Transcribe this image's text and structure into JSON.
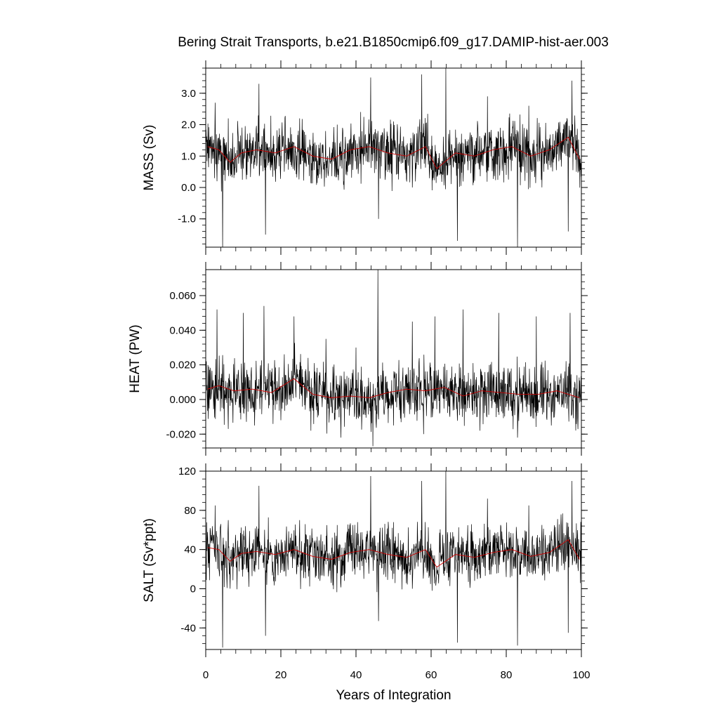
{
  "title": "Bering Strait Transports, b.e21.B1850cmip6.f09_g17.DAMIP-hist-aer.003",
  "chart_data": [
    {
      "type": "line",
      "ylabel": "MASS (Sv)",
      "xlabel": "",
      "xlim": [
        0,
        100
      ],
      "ylim": [
        -1.9,
        3.8
      ],
      "yticks": [
        -1.0,
        0.0,
        1.0,
        2.0,
        3.0
      ],
      "ytick_labels": [
        "-1.0",
        "0.0",
        "1.0",
        "2.0",
        "3.0"
      ],
      "xticks": [
        0,
        20,
        40,
        60,
        80,
        100
      ],
      "series": [
        {
          "color": "#000000",
          "kind": "monthly",
          "x": [
            0,
            2.5,
            4.5,
            6,
            10,
            14.2,
            15.9,
            20,
            25,
            30,
            35,
            40,
            43.9,
            46,
            50,
            55,
            57.5,
            60,
            63.9,
            67,
            70,
            75,
            80,
            83,
            86,
            90,
            96.5,
            97.5,
            100
          ],
          "y": [
            1.0,
            2.7,
            -1.9,
            2.2,
            0.6,
            3.3,
            -1.5,
            1.0,
            2.2,
            0.3,
            2.0,
            1.0,
            3.5,
            -1.0,
            2.1,
            0.0,
            3.6,
            1.0,
            3.8,
            -1.7,
            1.1,
            2.9,
            0.4,
            -1.9,
            2.6,
            0.5,
            -1.4,
            3.4,
            0.3
          ]
        },
        {
          "color": "#cc0000",
          "kind": "annual mean",
          "x": [
            0.5,
            3.5,
            6.5,
            9.5,
            13.5,
            18.5,
            23.5,
            28.5,
            33.5,
            38.5,
            43.5,
            48.5,
            53.5,
            58.5,
            61.5,
            66.5,
            71.5,
            76.5,
            81.5,
            86.5,
            91.5,
            96.5,
            99.5
          ],
          "y": [
            1.3,
            1.2,
            0.8,
            1.1,
            1.2,
            1.1,
            1.3,
            1.0,
            0.9,
            1.2,
            1.3,
            1.1,
            1.0,
            1.3,
            0.6,
            1.1,
            1.0,
            1.2,
            1.3,
            1.0,
            1.2,
            1.6,
            0.9
          ]
        }
      ]
    },
    {
      "type": "line",
      "ylabel": "HEAT (PW)",
      "xlabel": "",
      "xlim": [
        0,
        100
      ],
      "ylim": [
        -0.028,
        0.075
      ],
      "yticks": [
        -0.02,
        0.0,
        0.02,
        0.04,
        0.06
      ],
      "ytick_labels": [
        "-0.020",
        "0.000",
        "0.020",
        "0.040",
        "0.060"
      ],
      "xticks": [
        0,
        20,
        40,
        60,
        80,
        100
      ],
      "series": [
        {
          "color": "#000000",
          "kind": "monthly",
          "x": [
            0,
            3,
            6,
            10,
            13,
            15.5,
            20,
            23.5,
            28,
            32,
            36,
            40,
            44.5,
            45.8,
            50,
            55,
            58,
            61,
            65,
            68.5,
            73,
            78,
            83,
            88,
            92,
            97,
            100
          ],
          "y": [
            0.005,
            0.052,
            -0.017,
            0.05,
            -0.015,
            0.054,
            -0.012,
            0.048,
            -0.018,
            0.035,
            -0.022,
            0.03,
            -0.027,
            0.075,
            -0.015,
            0.045,
            -0.02,
            0.048,
            -0.01,
            0.052,
            -0.018,
            0.05,
            -0.022,
            0.048,
            -0.015,
            0.05,
            -0.01
          ]
        },
        {
          "color": "#cc0000",
          "kind": "annual mean",
          "x": [
            0.5,
            3.5,
            7.5,
            12.5,
            17.5,
            23.5,
            28.5,
            33.5,
            38.5,
            43.5,
            48.5,
            53.5,
            58.5,
            63.5,
            68.5,
            73.5,
            78.5,
            83.5,
            88.5,
            93.5,
            99.5
          ],
          "y": [
            0.006,
            0.008,
            0.005,
            0.006,
            0.004,
            0.012,
            0.003,
            0.001,
            0.002,
            0.001,
            0.004,
            0.006,
            0.005,
            0.007,
            0.002,
            0.005,
            0.004,
            0.003,
            0.003,
            0.005,
            0.001
          ]
        }
      ]
    },
    {
      "type": "line",
      "ylabel": "SALT (Sv*ppt)",
      "xlabel": "Years of Integration",
      "xlim": [
        0,
        100
      ],
      "ylim": [
        -62,
        120
      ],
      "yticks": [
        -40,
        0,
        40,
        80,
        120
      ],
      "ytick_labels": [
        "-40",
        "0",
        "40",
        "80",
        "120"
      ],
      "xticks": [
        0,
        20,
        40,
        60,
        80,
        100
      ],
      "xtick_labels": [
        "0",
        "20",
        "40",
        "60",
        "80",
        "100"
      ],
      "series": [
        {
          "color": "#000000",
          "kind": "monthly",
          "x": [
            0,
            2.5,
            4.5,
            6,
            10,
            14.2,
            15.9,
            20,
            25,
            30,
            35,
            40,
            43.9,
            46,
            50,
            55,
            57.5,
            60,
            63.9,
            67,
            70,
            75,
            80,
            83,
            86,
            90,
            96.5,
            97.5,
            100
          ],
          "y": [
            35,
            85,
            -60,
            70,
            20,
            105,
            -48,
            35,
            70,
            10,
            65,
            35,
            115,
            -33,
            68,
            0,
            110,
            35,
            120,
            -55,
            38,
            92,
            12,
            -58,
            85,
            15,
            -45,
            110,
            10
          ]
        },
        {
          "color": "#cc0000",
          "kind": "annual mean",
          "x": [
            0.5,
            3.5,
            6.5,
            9.5,
            13.5,
            18.5,
            23.5,
            28.5,
            33.5,
            38.5,
            43.5,
            48.5,
            53.5,
            58.5,
            61.5,
            66.5,
            71.5,
            76.5,
            81.5,
            86.5,
            91.5,
            96.5,
            99.5
          ],
          "y": [
            42,
            40,
            28,
            36,
            38,
            35,
            40,
            33,
            30,
            37,
            40,
            35,
            32,
            40,
            22,
            35,
            32,
            37,
            40,
            33,
            37,
            50,
            30
          ]
        }
      ]
    }
  ]
}
